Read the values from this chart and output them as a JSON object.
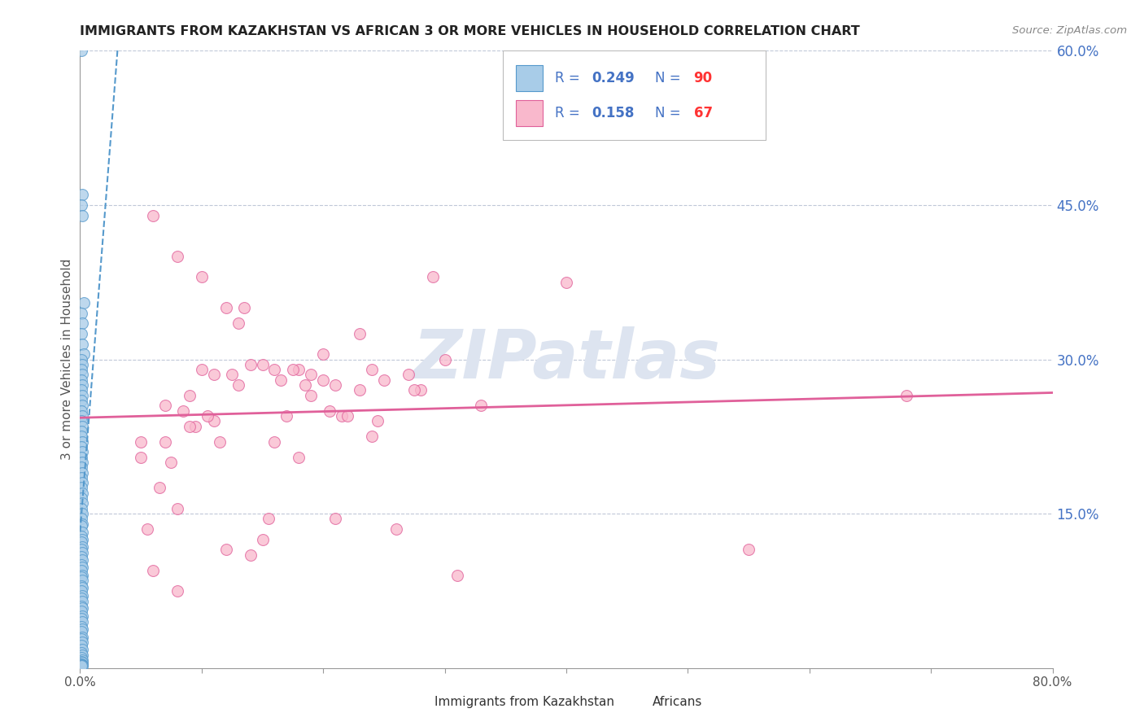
{
  "title": "IMMIGRANTS FROM KAZAKHSTAN VS AFRICAN 3 OR MORE VEHICLES IN HOUSEHOLD CORRELATION CHART",
  "source": "Source: ZipAtlas.com",
  "ylabel": "3 or more Vehicles in Household",
  "legend_label_kaz": "Immigrants from Kazakhstan",
  "legend_label_africans": "Africans",
  "R_kaz": 0.249,
  "N_kaz": 90,
  "R_afr": 0.158,
  "N_afr": 67,
  "xlim": [
    0.0,
    0.8
  ],
  "ylim": [
    0.0,
    0.6
  ],
  "x_ticks": [
    0.0,
    0.1,
    0.2,
    0.3,
    0.4,
    0.5,
    0.6,
    0.7,
    0.8
  ],
  "x_tick_labels": [
    "0.0%",
    "",
    "",
    "",
    "",
    "",
    "",
    "",
    "80.0%"
  ],
  "y_ticks_right": [
    0.15,
    0.3,
    0.45,
    0.6
  ],
  "y_tick_labels_right": [
    "15.0%",
    "30.0%",
    "45.0%",
    "60.0%"
  ],
  "color_kaz": "#a8cce8",
  "color_afr": "#f9b8cc",
  "color_kaz_edge": "#5599cc",
  "color_afr_edge": "#e0609a",
  "color_kaz_line": "#5599cc",
  "color_afr_line": "#e0609a",
  "watermark": "ZIPatlas",
  "watermark_color": "#dde4f0",
  "kaz_x": [
    0.001,
    0.002,
    0.001,
    0.002,
    0.003,
    0.001,
    0.002,
    0.001,
    0.002,
    0.003,
    0.001,
    0.002,
    0.001,
    0.002,
    0.001,
    0.002,
    0.001,
    0.002,
    0.001,
    0.002,
    0.001,
    0.002,
    0.001,
    0.002,
    0.001,
    0.001,
    0.002,
    0.001,
    0.002,
    0.001,
    0.002,
    0.001,
    0.002,
    0.001,
    0.002,
    0.001,
    0.002,
    0.001,
    0.002,
    0.001,
    0.002,
    0.001,
    0.002,
    0.001,
    0.002,
    0.001,
    0.002,
    0.001,
    0.002,
    0.001,
    0.002,
    0.001,
    0.002,
    0.001,
    0.002,
    0.001,
    0.002,
    0.001,
    0.002,
    0.001,
    0.002,
    0.001,
    0.002,
    0.001,
    0.002,
    0.001,
    0.002,
    0.001,
    0.002,
    0.001,
    0.002,
    0.001,
    0.002,
    0.001,
    0.002,
    0.001,
    0.002,
    0.001,
    0.002,
    0.001,
    0.002,
    0.001,
    0.002,
    0.001,
    0.002,
    0.001,
    0.002,
    0.001,
    0.002,
    0.001
  ],
  "kaz_y": [
    0.6,
    0.46,
    0.45,
    0.44,
    0.355,
    0.345,
    0.335,
    0.325,
    0.315,
    0.305,
    0.3,
    0.295,
    0.29,
    0.285,
    0.28,
    0.275,
    0.27,
    0.265,
    0.26,
    0.255,
    0.25,
    0.245,
    0.24,
    0.235,
    0.23,
    0.225,
    0.22,
    0.215,
    0.21,
    0.205,
    0.2,
    0.195,
    0.19,
    0.185,
    0.18,
    0.175,
    0.17,
    0.165,
    0.16,
    0.155,
    0.15,
    0.145,
    0.14,
    0.138,
    0.132,
    0.128,
    0.125,
    0.122,
    0.118,
    0.115,
    0.112,
    0.108,
    0.105,
    0.1,
    0.098,
    0.095,
    0.09,
    0.088,
    0.085,
    0.08,
    0.078,
    0.075,
    0.07,
    0.068,
    0.065,
    0.06,
    0.058,
    0.055,
    0.05,
    0.048,
    0.045,
    0.04,
    0.038,
    0.035,
    0.03,
    0.028,
    0.025,
    0.022,
    0.018,
    0.015,
    0.012,
    0.01,
    0.008,
    0.006,
    0.005,
    0.004,
    0.003,
    0.003,
    0.002,
    0.002
  ],
  "afr_x": [
    0.06,
    0.08,
    0.1,
    0.12,
    0.15,
    0.18,
    0.2,
    0.13,
    0.25,
    0.28,
    0.05,
    0.07,
    0.09,
    0.11,
    0.16,
    0.19,
    0.21,
    0.24,
    0.27,
    0.14,
    0.075,
    0.095,
    0.115,
    0.135,
    0.165,
    0.185,
    0.205,
    0.23,
    0.26,
    0.29,
    0.065,
    0.085,
    0.105,
    0.125,
    0.155,
    0.175,
    0.215,
    0.245,
    0.275,
    0.3,
    0.055,
    0.08,
    0.1,
    0.13,
    0.16,
    0.19,
    0.22,
    0.4,
    0.55,
    0.68,
    0.05,
    0.07,
    0.09,
    0.12,
    0.15,
    0.18,
    0.21,
    0.24,
    0.31,
    0.33,
    0.06,
    0.08,
    0.11,
    0.14,
    0.17,
    0.2,
    0.23
  ],
  "afr_y": [
    0.44,
    0.4,
    0.38,
    0.35,
    0.295,
    0.29,
    0.28,
    0.335,
    0.28,
    0.27,
    0.22,
    0.255,
    0.265,
    0.24,
    0.29,
    0.285,
    0.275,
    0.29,
    0.285,
    0.295,
    0.2,
    0.235,
    0.22,
    0.35,
    0.28,
    0.275,
    0.25,
    0.27,
    0.135,
    0.38,
    0.175,
    0.25,
    0.245,
    0.285,
    0.145,
    0.29,
    0.245,
    0.24,
    0.27,
    0.3,
    0.135,
    0.155,
    0.29,
    0.275,
    0.22,
    0.265,
    0.245,
    0.375,
    0.115,
    0.265,
    0.205,
    0.22,
    0.235,
    0.115,
    0.125,
    0.205,
    0.145,
    0.225,
    0.09,
    0.255,
    0.095,
    0.075,
    0.285,
    0.11,
    0.245,
    0.305,
    0.325
  ]
}
